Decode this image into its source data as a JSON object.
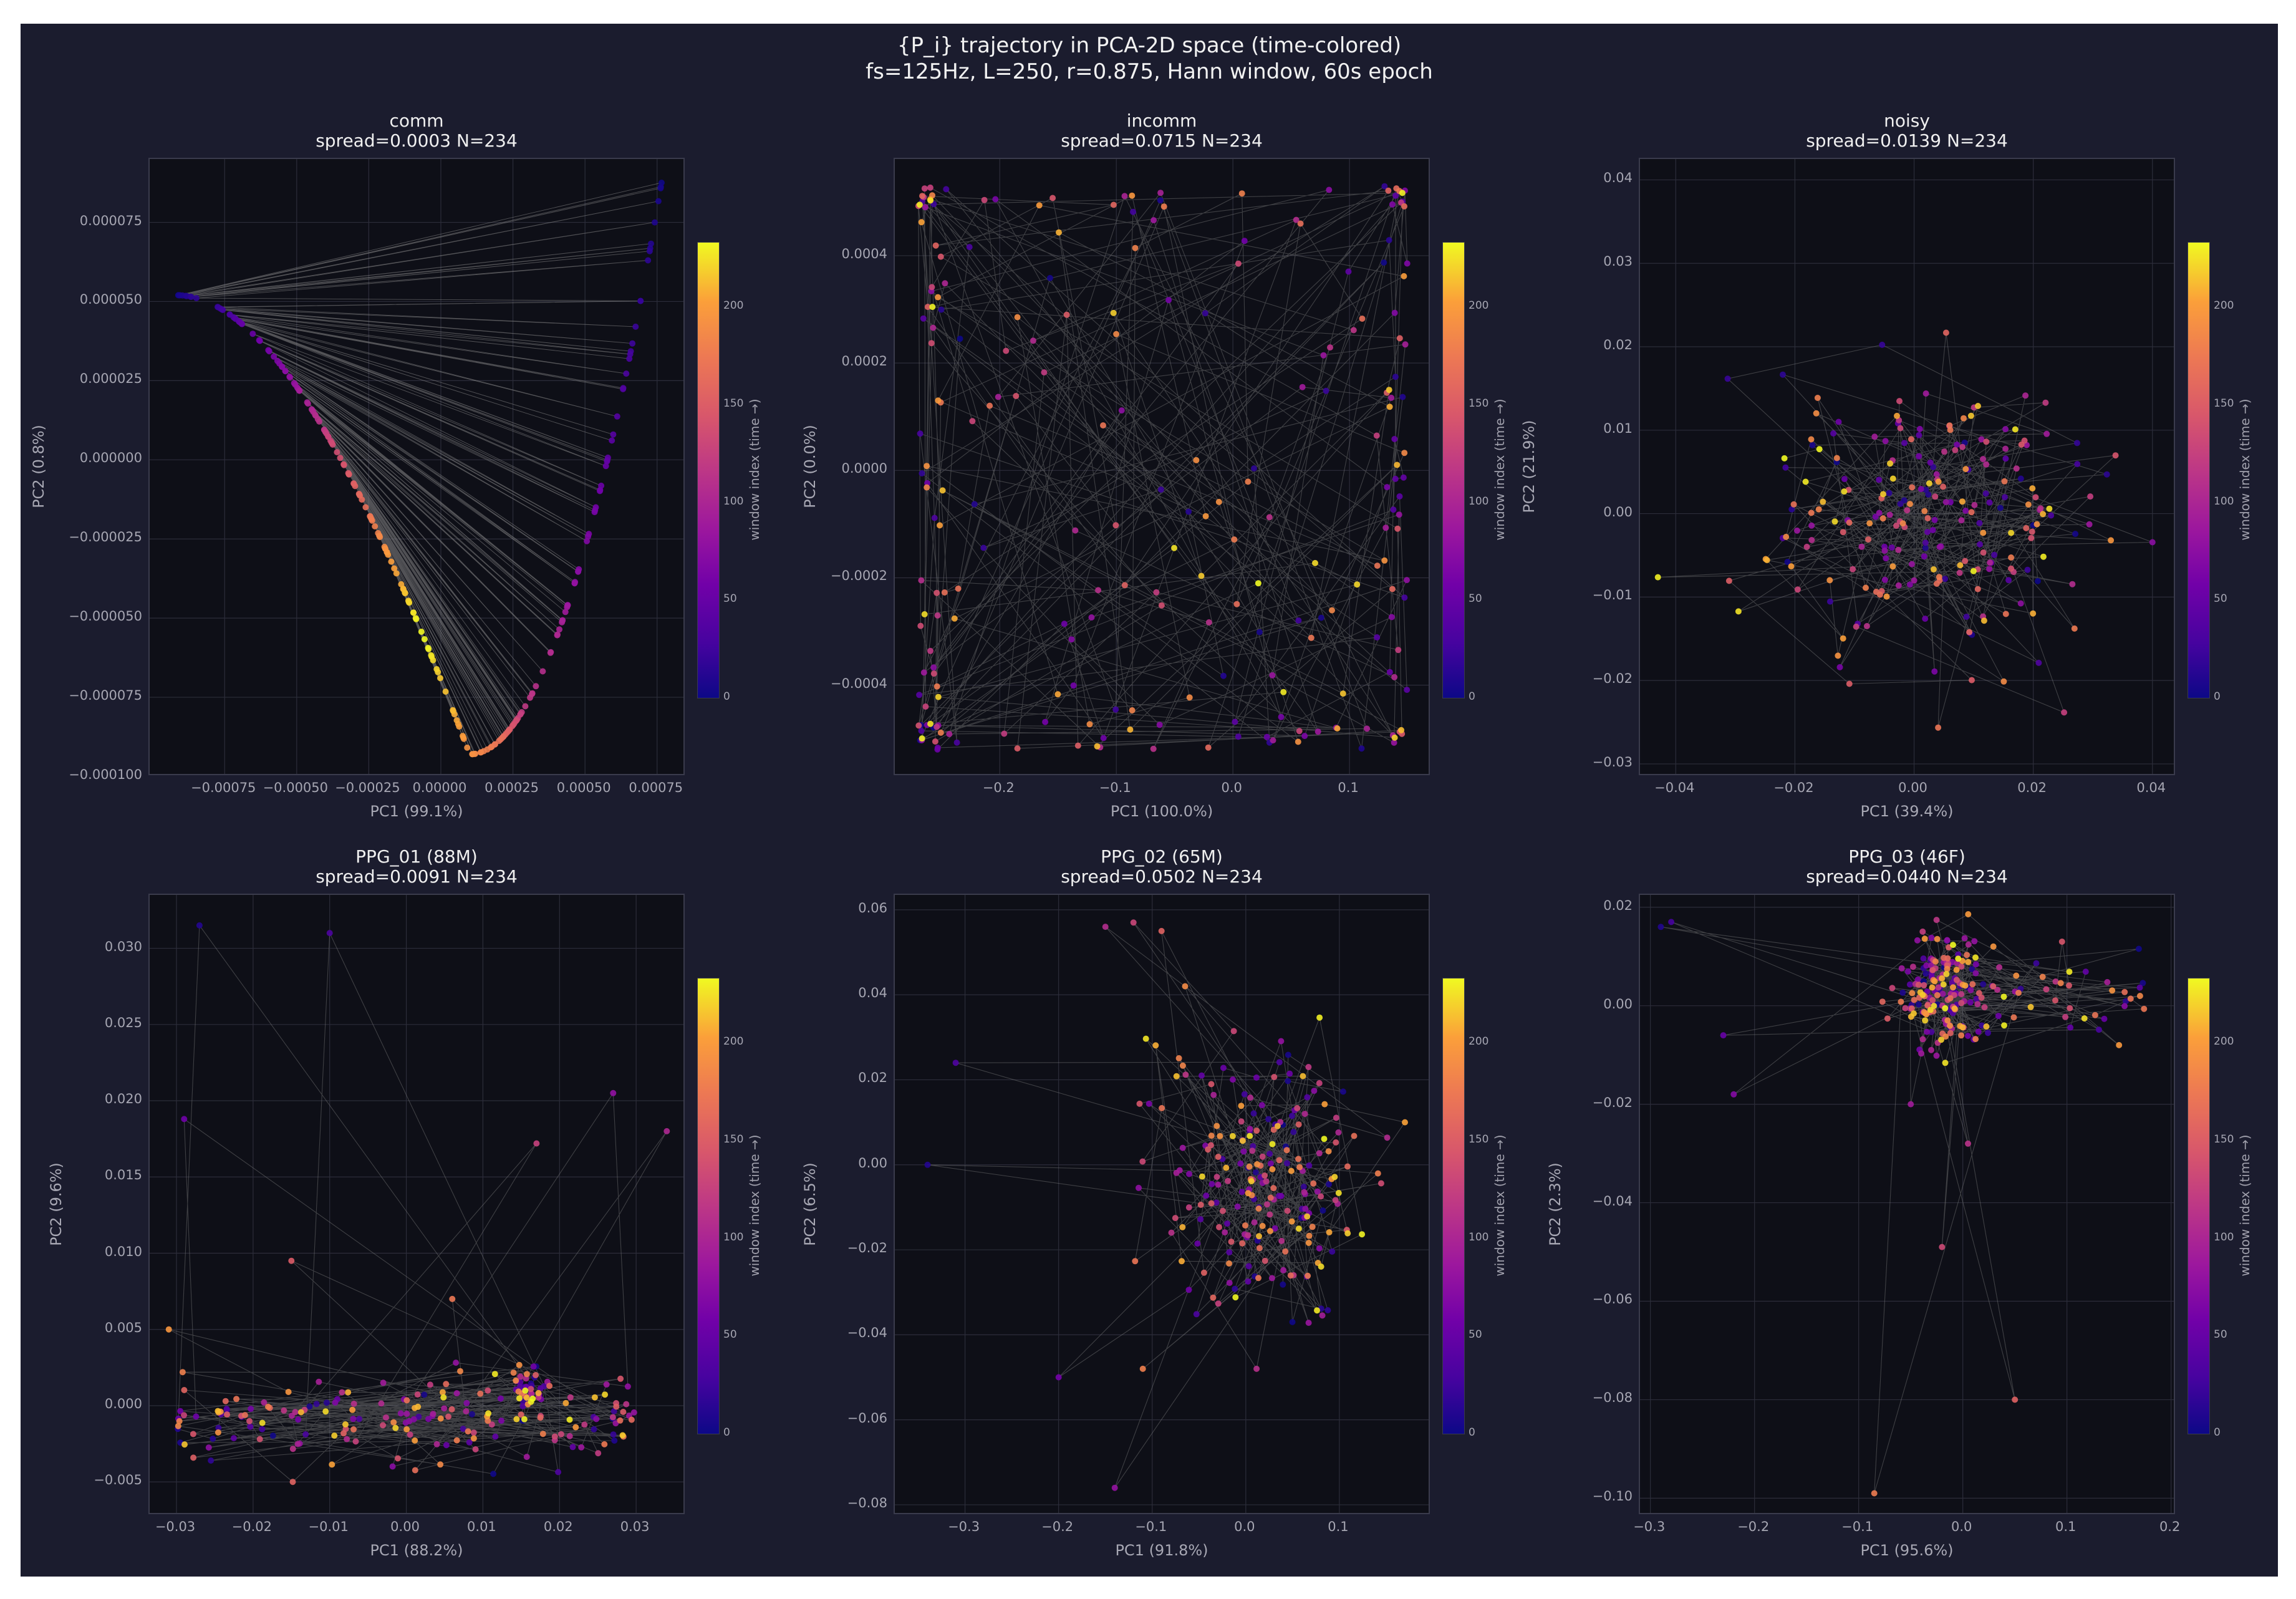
{
  "figure": {
    "title_line1": "{P_i} trajectory in PCA-2D space  (time-colored)",
    "title_line2": "fs=125Hz, L=250, r=0.875, Hann window, 60s epoch"
  },
  "colorbar": {
    "label": "window index (time →)",
    "ticks": [
      0,
      50,
      100,
      150,
      200
    ],
    "range": [
      0,
      233
    ],
    "colormap": "plasma"
  },
  "colors": {
    "figure_bg": "#1b1c2e",
    "axes_bg": "#0e0f17",
    "line": "#8a8a8a",
    "grid": "#2c2d3a",
    "text": "#f0f0f0"
  },
  "chart_data": [
    {
      "type": "scatter",
      "title_line1": "comm",
      "title_line2": "spread=0.0003  N=234",
      "xlabel": "PC1 (99.1%)",
      "ylabel": "PC2 (0.8%)",
      "xlim": [
        -0.00101,
        0.00085
      ],
      "ylim": [
        -0.0001,
        9.5e-05
      ],
      "xticks": [
        "−0.00075",
        "−0.00050",
        "−0.00025",
        "0.00000",
        "0.00025",
        "0.00050",
        "0.00075"
      ],
      "xtick_values": [
        -0.00075,
        -0.0005,
        -0.00025,
        0,
        0.00025,
        0.0005,
        0.00075
      ],
      "yticks": [
        "−0.000100",
        "−0.000075",
        "−0.000050",
        "−0.000025",
        "0.000000",
        "0.000025",
        "0.000050",
        "0.000075"
      ],
      "ytick_values": [
        -0.0001,
        -7.5e-05,
        -5e-05,
        -2.5e-05,
        0,
        2.5e-05,
        5e-05,
        7.5e-05
      ],
      "grid": true,
      "points_shown": "trajectory along a parabolic curve from (-0.00092, 0.000052) via minimum (0.0001, -0.000093) up to (0.00077, 0.00009); chord lines connect consecutive windows"
    },
    {
      "type": "scatter",
      "title_line1": "incomm",
      "title_line2": "spread=0.0715  N=234",
      "xlabel": "PC1 (100.0%)",
      "ylabel": "PC2 (0.0%)",
      "xlim": [
        -0.29,
        0.17
      ],
      "ylim": [
        -0.00057,
        0.00058
      ],
      "xticks": [
        "−0.2",
        "−0.1",
        "0.0",
        "0.1"
      ],
      "xtick_values": [
        -0.2,
        -0.1,
        0,
        0.1
      ],
      "yticks": [
        "−0.0004",
        "−0.0002",
        "0.0000",
        "0.0002",
        "0.0004"
      ],
      "ytick_values": [
        -0.0004,
        -0.0002,
        0,
        0.0002,
        0.0004
      ],
      "grid": true,
      "points_shown": "points fill the rectangle x∈[-0.27,0.15], y∈[-0.00052,0.00053], denser along left and right edges"
    },
    {
      "type": "scatter",
      "title_line1": "noisy",
      "title_line2": "spread=0.0139  N=234",
      "xlabel": "PC1 (39.4%)",
      "ylabel": "PC2 (21.9%)",
      "xlim": [
        -0.046,
        0.044
      ],
      "ylim": [
        -0.0315,
        0.0425
      ],
      "xticks": [
        "−0.04",
        "−0.02",
        "0.00",
        "0.02",
        "0.04"
      ],
      "xtick_values": [
        -0.04,
        -0.02,
        0,
        0.02,
        0.04
      ],
      "yticks": [
        "−0.03",
        "−0.02",
        "−0.01",
        "0.00",
        "0.01",
        "0.02",
        "0.03",
        "0.04"
      ],
      "ytick_values": [
        -0.03,
        -0.02,
        -0.01,
        0,
        0.01,
        0.02,
        0.03,
        0.04
      ],
      "grid": true,
      "points_shown": "roughly Gaussian cloud centred at (0.002, 0.0), std ≈ 0.013 / 0.009"
    },
    {
      "type": "scatter",
      "title_line1": "PPG_01 (88M)",
      "title_line2": "spread=0.0091  N=234",
      "xlabel": "PC1 (88.2%)",
      "ylabel": "PC2 (9.6%)",
      "xlim": [
        -0.0335,
        0.0365
      ],
      "ylim": [
        -0.0072,
        0.0335
      ],
      "xticks": [
        "−0.03",
        "−0.02",
        "−0.01",
        "0.00",
        "0.01",
        "0.02",
        "0.03"
      ],
      "xtick_values": [
        -0.03,
        -0.02,
        -0.01,
        0,
        0.01,
        0.02,
        0.03
      ],
      "yticks": [
        "−0.005",
        "0.000",
        "0.005",
        "0.010",
        "0.015",
        "0.020",
        "0.025",
        "0.030"
      ],
      "ytick_values": [
        -0.005,
        0,
        0.005,
        0.01,
        0.015,
        0.02,
        0.025,
        0.03
      ],
      "grid": true,
      "outliers": [
        [
          -0.027,
          0.0315
        ],
        [
          -0.01,
          0.031
        ],
        [
          -0.029,
          0.0188
        ],
        [
          0.027,
          0.0205
        ],
        [
          0.034,
          0.018
        ],
        [
          0.017,
          0.0172
        ],
        [
          -0.015,
          0.0095
        ],
        [
          0.006,
          0.007
        ],
        [
          -0.031,
          0.005
        ]
      ],
      "points_shown": "dense band y∈[-0.005,0.003] over x∈[-0.03,0.03], yellow cluster near (0.016, 0.001)"
    },
    {
      "type": "scatter",
      "title_line1": "PPG_02 (65M)",
      "title_line2": "spread=0.0502  N=234",
      "xlabel": "PC1 (91.8%)",
      "ylabel": "PC2 (6.5%)",
      "xlim": [
        -0.375,
        0.198
      ],
      "ylim": [
        -0.0825,
        0.0635
      ],
      "xticks": [
        "−0.3",
        "−0.2",
        "−0.1",
        "0.0",
        "0.1"
      ],
      "xtick_values": [
        -0.3,
        -0.2,
        -0.1,
        0,
        0.1
      ],
      "yticks": [
        "−0.08",
        "−0.06",
        "−0.04",
        "−0.02",
        "0.00",
        "0.02",
        "0.04",
        "0.06"
      ],
      "ytick_values": [
        -0.08,
        -0.06,
        -0.04,
        -0.02,
        0,
        0.02,
        0.04,
        0.06
      ],
      "grid": true,
      "outliers": [
        [
          -0.34,
          0.0
        ],
        [
          -0.31,
          0.024
        ],
        [
          -0.2,
          -0.05
        ],
        [
          -0.14,
          -0.076
        ],
        [
          -0.15,
          0.056
        ],
        [
          -0.12,
          0.057
        ],
        [
          -0.09,
          0.055
        ],
        [
          -0.11,
          -0.048
        ],
        [
          0.17,
          0.01
        ]
      ],
      "points_shown": "main cloud centred at (0.02, -0.005), std ≈ 0.06 / 0.015"
    },
    {
      "type": "scatter",
      "title_line1": "PPG_03 (46F)",
      "title_line2": "spread=0.0440  N=234",
      "xlabel": "PC1 (95.6%)",
      "ylabel": "PC2 (2.3%)",
      "xlim": [
        -0.31,
        0.205
      ],
      "ylim": [
        -0.1035,
        0.0225
      ],
      "xticks": [
        "−0.3",
        "−0.2",
        "−0.1",
        "0.0",
        "0.1",
        "0.2"
      ],
      "xtick_values": [
        -0.3,
        -0.2,
        -0.1,
        0,
        0.1,
        0.2
      ],
      "yticks": [
        "−0.10",
        "−0.08",
        "−0.06",
        "−0.04",
        "−0.02",
        "0.00",
        "0.02"
      ],
      "ytick_values": [
        -0.1,
        -0.08,
        -0.06,
        -0.04,
        -0.02,
        0,
        0.02
      ],
      "grid": true,
      "outliers": [
        [
          -0.29,
          0.016
        ],
        [
          -0.28,
          0.017
        ],
        [
          -0.23,
          -0.006
        ],
        [
          -0.22,
          -0.018
        ],
        [
          -0.05,
          -0.02
        ],
        [
          0.005,
          -0.028
        ],
        [
          -0.02,
          -0.049
        ],
        [
          0.05,
          -0.08
        ],
        [
          -0.085,
          -0.099
        ],
        [
          0.15,
          -0.008
        ]
      ],
      "points_shown": "dense cluster centred at (-0.02, 0.003), tail to the right up to x≈0.18"
    }
  ]
}
